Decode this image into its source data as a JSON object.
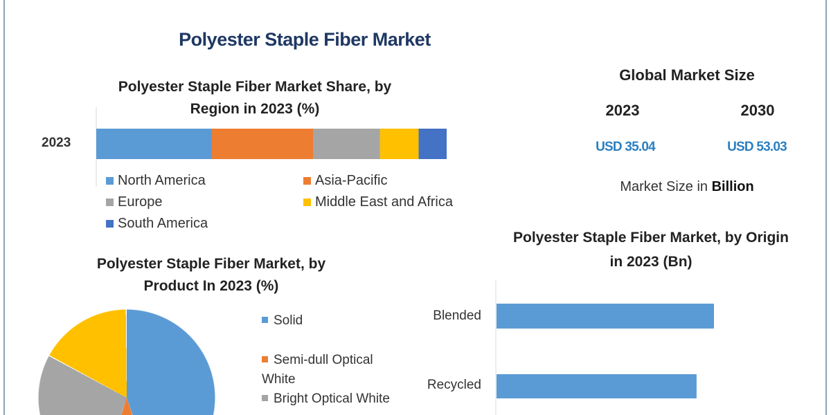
{
  "title": "Polyester Staple Fiber Market",
  "market_size": {
    "heading": "Global Market Size",
    "years": [
      "2023",
      "2030"
    ],
    "values": [
      "USD 35.04",
      "USD 53.03"
    ],
    "note_prefix": "Market Size in ",
    "note_bold": "Billion"
  },
  "colors": {
    "title": "#1f3864",
    "usd": "#2a7fc0"
  },
  "chart_data": [
    {
      "type": "bar",
      "stacked": true,
      "orientation": "horizontal",
      "title_line1": "Polyester Staple Fiber Market Share, by",
      "title_line2": "Region in 2023 (%)",
      "categories": [
        "2023"
      ],
      "series": [
        {
          "name": "North America",
          "values": [
            33
          ],
          "color": "#5b9bd5"
        },
        {
          "name": "Asia-Pacific",
          "values": [
            29
          ],
          "color": "#ed7d31"
        },
        {
          "name": "Europe",
          "values": [
            19
          ],
          "color": "#a5a5a5"
        },
        {
          "name": "Middle East and Africa",
          "values": [
            11
          ],
          "color": "#ffc000"
        },
        {
          "name": "South America",
          "values": [
            8
          ],
          "color": "#4472c4"
        }
      ],
      "legend": "bottom"
    },
    {
      "type": "pie",
      "title_line1": "Polyester Staple Fiber Market, by",
      "title_line2": "Product In 2023 (%)",
      "slices": [
        {
          "name": "Solid",
          "value": 45,
          "color": "#5b9bd5"
        },
        {
          "name": "Semi-dull Optical White",
          "value": 10,
          "color": "#ed7d31"
        },
        {
          "name": "Bright Optical White",
          "value": 28,
          "color": "#a5a5a5"
        },
        {
          "value": 17,
          "color": "#ffc000"
        }
      ],
      "legend": "right"
    },
    {
      "type": "bar",
      "orientation": "horizontal",
      "title_line1": "Polyester Staple Fiber Market, by Origin",
      "title_line2": "in 2023 (Bn)",
      "categories": [
        "Blended",
        "Recycled"
      ],
      "values": [
        1.0,
        0.92
      ],
      "value_unit": "relative",
      "color": "#5b9bd5"
    }
  ]
}
